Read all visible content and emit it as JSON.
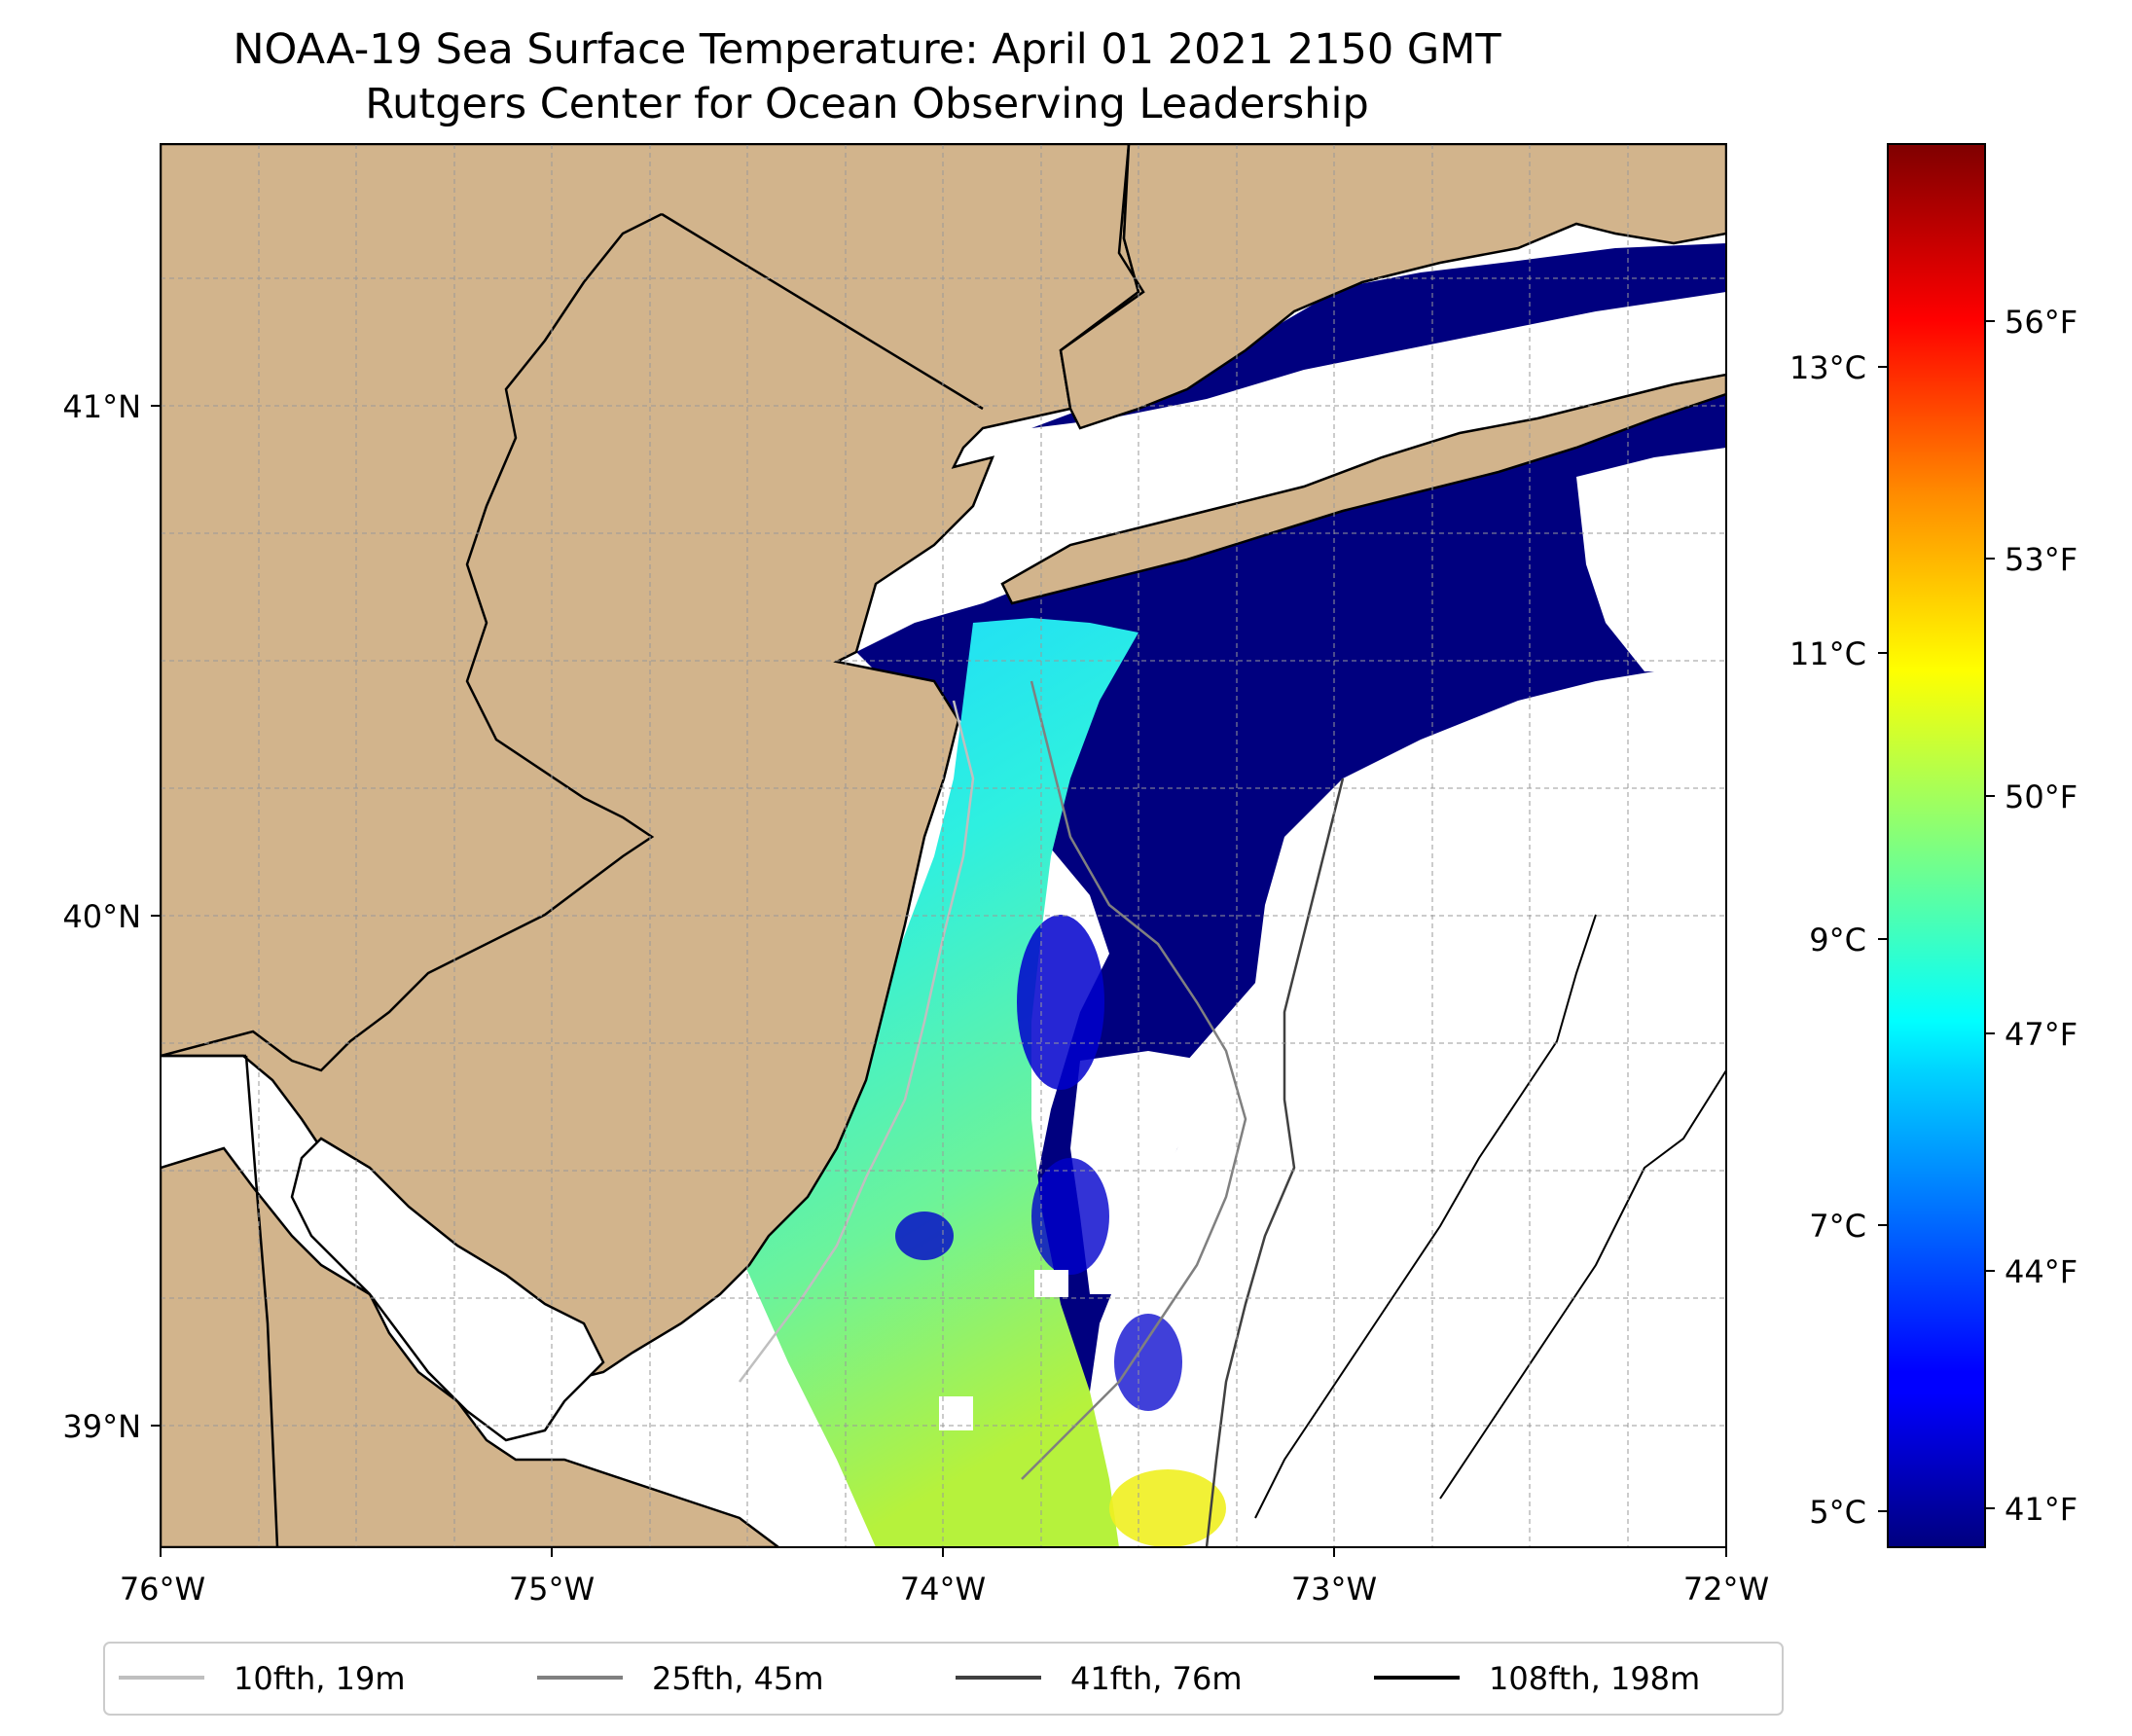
{
  "title": "NOAA-19 Sea Surface Temperature: April 01 2021 2150 GMT",
  "subtitle": "Rutgers Center for Ocean Observing Leadership",
  "map": {
    "lon_range": [
      -76,
      -72
    ],
    "lat_range": [
      38.75,
      41.5
    ],
    "land_color": "#d2b48c",
    "water_color": "#ffffff",
    "grid": true,
    "lon_ticks": [
      "76°W",
      "75°W",
      "74°W",
      "73°W",
      "72°W"
    ],
    "lat_ticks": [
      "41°N",
      "40°N",
      "39°N"
    ]
  },
  "colorbar": {
    "colormap": "jet",
    "celsius_ticks": [
      "13°C",
      "11°C",
      "9°C",
      "7°C",
      "5°C"
    ],
    "fahrenheit_ticks": [
      "56°F",
      "53°F",
      "50°F",
      "47°F",
      "44°F",
      "41°F"
    ]
  },
  "legend": [
    {
      "label": "10fth, 19m",
      "color": "#bfbfbf"
    },
    {
      "label": "25fth, 45m",
      "color": "#808080"
    },
    {
      "label": "41fth, 76m",
      "color": "#404040"
    },
    {
      "label": "108fth, 198m",
      "color": "#000000"
    }
  ]
}
